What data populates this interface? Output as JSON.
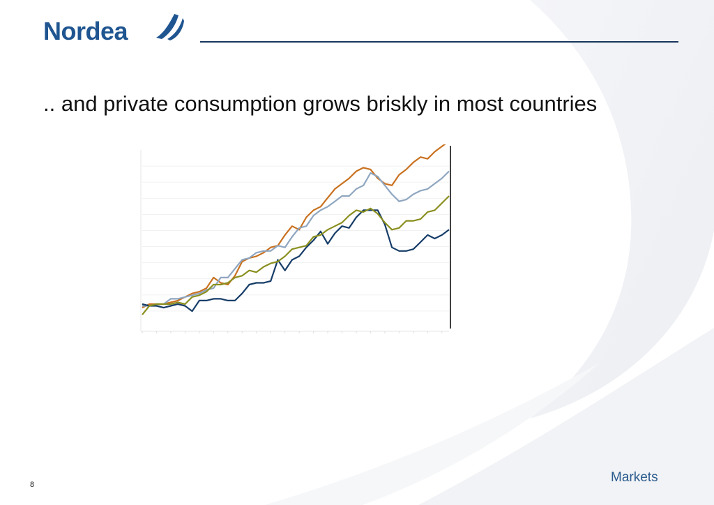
{
  "header": {
    "logo_text": "Nordea",
    "brand_color": "#1f5590",
    "rule_color": "#17365d"
  },
  "slide": {
    "title": ".. and private consumption grows briskly in most countries",
    "page_number": "8"
  },
  "footer": {
    "division_label": "Markets"
  },
  "chart_data": {
    "type": "line",
    "title": "",
    "xlabel": "",
    "ylabel": "",
    "legend": "none",
    "grid": true,
    "x": [
      0,
      1,
      2,
      3,
      4,
      5,
      6,
      7,
      8,
      9,
      10,
      11,
      12,
      13,
      14,
      15,
      16,
      17,
      18,
      19,
      20,
      21,
      22,
      23,
      24,
      25,
      26,
      27,
      28,
      29,
      30,
      31,
      32,
      33,
      34,
      35,
      36,
      37,
      38,
      39,
      40,
      41,
      42,
      43
    ],
    "xlim": [
      0,
      43
    ],
    "ylim": [
      0,
      100
    ],
    "vertical_marker_x": 43,
    "series": [
      {
        "color": "#c9711f",
        "values": [
          11,
          13,
          13,
          13,
          14,
          15,
          17,
          19,
          20,
          22,
          28,
          25,
          24,
          29,
          37,
          39,
          40,
          42,
          45,
          46,
          52,
          57,
          55,
          62,
          66,
          68,
          73,
          78,
          81,
          84,
          88,
          90,
          89,
          84,
          81,
          80,
          86,
          89,
          93,
          96,
          95,
          99,
          102,
          105
        ]
      },
      {
        "color": "#8fa6c0",
        "values": [
          12,
          12,
          13,
          13,
          16,
          16,
          17,
          18,
          19,
          21,
          22,
          28,
          28,
          33,
          38,
          39,
          42,
          43,
          43,
          46,
          45,
          51,
          56,
          57,
          63,
          66,
          68,
          71,
          74,
          74,
          78,
          80,
          87,
          85,
          80,
          75,
          71,
          72,
          75,
          77,
          78,
          81,
          84,
          88
        ]
      },
      {
        "color": "#173d68",
        "values": [
          13,
          12,
          12,
          11,
          12,
          13,
          12,
          9,
          15,
          15,
          16,
          16,
          15,
          15,
          19,
          24,
          25,
          25,
          26,
          38,
          32,
          38,
          40,
          45,
          49,
          54,
          47,
          53,
          57,
          56,
          62,
          66,
          66,
          66,
          58,
          45,
          43,
          43,
          44,
          48,
          52,
          50,
          52,
          55
        ]
      },
      {
        "color": "#8a8f1f",
        "values": [
          7,
          12,
          13,
          13,
          13,
          14,
          13,
          17,
          18,
          20,
          24,
          24,
          25,
          28,
          29,
          32,
          31,
          34,
          36,
          37,
          40,
          44,
          45,
          46,
          51,
          52,
          55,
          57,
          59,
          63,
          66,
          65,
          67,
          64,
          59,
          55,
          56,
          60,
          60,
          61,
          65,
          66,
          70,
          74
        ]
      }
    ]
  }
}
